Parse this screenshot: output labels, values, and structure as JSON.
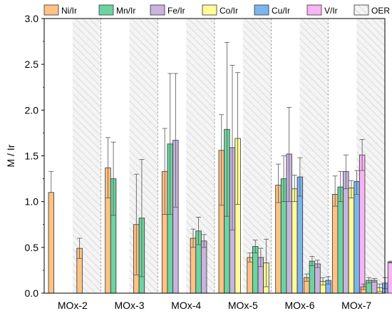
{
  "chart_data": {
    "type": "bar",
    "ylabel": "M / Ir",
    "xlabel": "",
    "ylim": [
      0,
      3.0
    ],
    "yticks": [
      "0.0",
      "0.5",
      "1.0",
      "1.5",
      "2.0",
      "2.5",
      "3.0"
    ],
    "grid": "dashed vertical group separators",
    "legend_position": "top",
    "categories": [
      "MOx-2",
      "MOx-3",
      "MOx-4",
      "MOx-5",
      "MOx-6",
      "MOx-7"
    ],
    "series": [
      {
        "name": "Ni/Ir",
        "color": "#FFC285",
        "values": [
          1.1,
          1.37,
          1.33,
          1.56,
          1.18,
          1.08
        ],
        "err_lo": [
          0.0,
          0.33,
          0.47,
          0.6,
          0.19,
          0.13
        ],
        "err_hi": [
          0.23,
          0.33,
          0.47,
          0.39,
          0.23,
          0.2
        ]
      },
      {
        "name": "Mn/Ir",
        "color": "#6CD4A0",
        "values": [
          null,
          1.25,
          1.63,
          1.79,
          1.25,
          1.16
        ],
        "err_lo": [
          0,
          0.4,
          0.77,
          0.95,
          0.25,
          0.16
        ],
        "err_hi": [
          0,
          0.4,
          0.77,
          0.95,
          0.25,
          0.17
        ]
      },
      {
        "name": "Fe/Ir",
        "color": "#C8B4DE",
        "values": [
          null,
          null,
          1.67,
          1.59,
          1.52,
          1.33
        ],
        "err_lo": [
          0,
          0,
          0.73,
          0.9,
          0.52,
          0.19
        ],
        "err_hi": [
          0,
          0,
          0.73,
          0.9,
          0.51,
          0.18
        ]
      },
      {
        "name": "Co/Ir",
        "color": "#FFFB96",
        "values": [
          null,
          null,
          null,
          1.69,
          1.14,
          1.15
        ],
        "err_lo": [
          0,
          0,
          0,
          0.72,
          0.14,
          0.11
        ],
        "err_hi": [
          0,
          0,
          0,
          0.72,
          0.15,
          0.08
        ]
      },
      {
        "name": "Cu/Ir",
        "color": "#7CB4EE",
        "values": [
          null,
          null,
          null,
          null,
          1.27,
          1.22
        ],
        "err_lo": [
          0,
          0,
          0,
          0,
          0.21,
          0.14
        ],
        "err_hi": [
          0,
          0,
          0,
          0,
          0.21,
          0.12
        ]
      },
      {
        "name": "V/Ir",
        "color": "#F8B4F4",
        "values": [
          null,
          null,
          null,
          null,
          null,
          1.51
        ],
        "err_lo": [
          0,
          0,
          0,
          0,
          0,
          0.17
        ],
        "err_hi": [
          0,
          0,
          0,
          0,
          0,
          0.17
        ]
      },
      {
        "name": "OER",
        "color": "#F2F2F2",
        "hatched": true,
        "values": [
          0.49,
          0.75,
          0.6,
          0.39,
          0.17,
          0.07
        ],
        "members": [
          [
            "Ni/Ir"
          ],
          [
            "Ni/Ir",
            "Mn/Ir"
          ],
          [
            "Ni/Ir",
            "Mn/Ir",
            "Fe/Ir"
          ],
          [
            "Ni/Ir",
            "Mn/Ir",
            "Fe/Ir",
            "Co/Ir"
          ],
          [
            "Ni/Ir",
            "Mn/Ir",
            "Fe/Ir",
            "Co/Ir",
            "Cu/Ir"
          ],
          [
            "Ni/Ir",
            "Mn/Ir",
            "Fe/Ir",
            "Co/Ir",
            "Cu/Ir",
            "V/Ir"
          ]
        ],
        "member_values": [
          [
            0.49
          ],
          [
            0.75,
            0.82
          ],
          [
            0.6,
            0.68,
            0.57
          ],
          [
            0.39,
            0.51,
            0.39,
            0.33
          ],
          [
            0.17,
            0.35,
            0.32,
            0.13,
            0.14
          ],
          [
            0.07,
            0.14,
            0.14,
            0.06,
            0.11,
            0.34
          ]
        ],
        "member_err": [
          [
            0.11
          ],
          [
            0.55,
            0.64
          ],
          [
            0.1,
            0.15,
            0.07
          ],
          [
            0.05,
            0.07,
            0.1,
            0.26
          ],
          [
            0.04,
            0.05,
            0.04,
            0.04,
            0.04
          ],
          [
            0.03,
            0.03,
            0.02,
            0.04,
            0.06,
            0.01
          ]
        ]
      }
    ]
  }
}
